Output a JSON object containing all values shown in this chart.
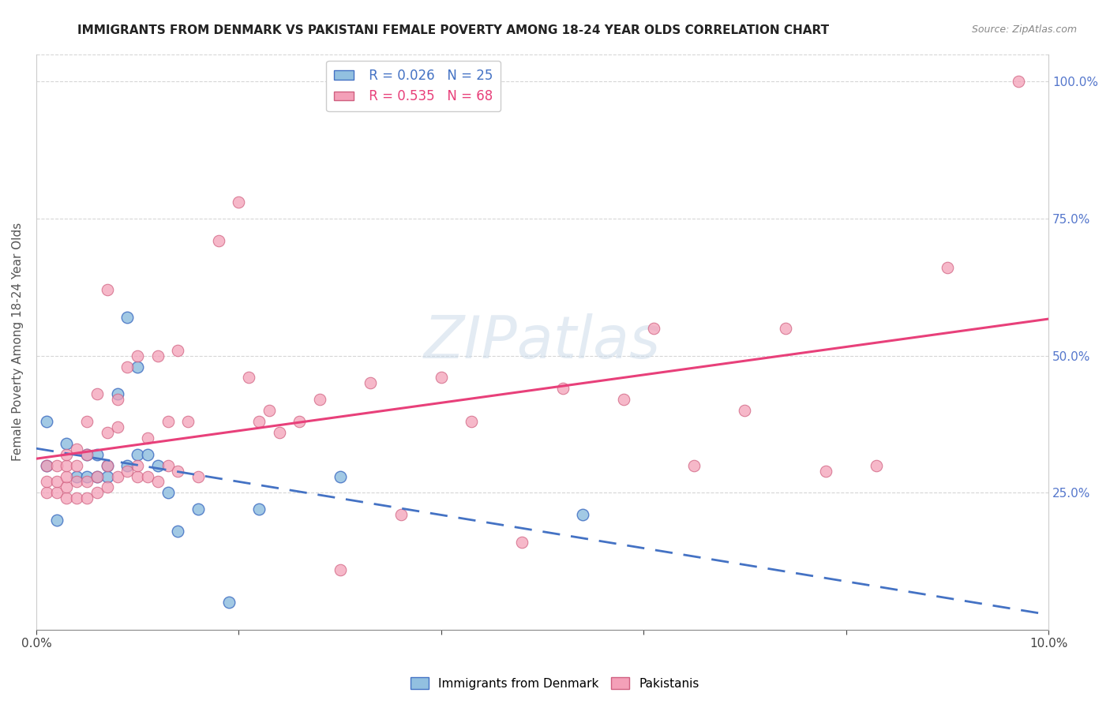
{
  "title": "IMMIGRANTS FROM DENMARK VS PAKISTANI FEMALE POVERTY AMONG 18-24 YEAR OLDS CORRELATION CHART",
  "source": "Source: ZipAtlas.com",
  "ylabel": "Female Poverty Among 18-24 Year Olds",
  "xlim": [
    0.0,
    0.1
  ],
  "ylim": [
    0.0,
    1.05
  ],
  "yticks": [
    0.0,
    0.25,
    0.5,
    0.75,
    1.0
  ],
  "yticklabels": [
    "",
    "25.0%",
    "50.0%",
    "75.0%",
    "100.0%"
  ],
  "legend1_r": "0.026",
  "legend1_n": "25",
  "legend2_r": "0.535",
  "legend2_n": "68",
  "color_blue": "#92c0e0",
  "color_pink": "#f4a0b8",
  "line_blue": "#4472c4",
  "line_pink": "#e8407a",
  "watermark": "ZIPatlas",
  "denmark_x": [
    0.001,
    0.001,
    0.002,
    0.003,
    0.004,
    0.005,
    0.005,
    0.006,
    0.006,
    0.007,
    0.007,
    0.008,
    0.009,
    0.009,
    0.01,
    0.01,
    0.011,
    0.012,
    0.013,
    0.014,
    0.016,
    0.019,
    0.022,
    0.03,
    0.054
  ],
  "denmark_y": [
    0.3,
    0.38,
    0.2,
    0.34,
    0.28,
    0.28,
    0.32,
    0.28,
    0.32,
    0.3,
    0.28,
    0.43,
    0.3,
    0.57,
    0.32,
    0.48,
    0.32,
    0.3,
    0.25,
    0.18,
    0.22,
    0.05,
    0.22,
    0.28,
    0.21
  ],
  "pakistan_x": [
    0.001,
    0.001,
    0.001,
    0.002,
    0.002,
    0.002,
    0.003,
    0.003,
    0.003,
    0.003,
    0.003,
    0.004,
    0.004,
    0.004,
    0.004,
    0.005,
    0.005,
    0.005,
    0.005,
    0.006,
    0.006,
    0.006,
    0.007,
    0.007,
    0.007,
    0.007,
    0.008,
    0.008,
    0.008,
    0.009,
    0.009,
    0.01,
    0.01,
    0.01,
    0.011,
    0.011,
    0.012,
    0.012,
    0.013,
    0.013,
    0.014,
    0.014,
    0.015,
    0.016,
    0.018,
    0.02,
    0.021,
    0.022,
    0.023,
    0.024,
    0.026,
    0.028,
    0.03,
    0.033,
    0.036,
    0.04,
    0.043,
    0.048,
    0.052,
    0.058,
    0.061,
    0.065,
    0.07,
    0.074,
    0.078,
    0.083,
    0.09,
    0.097
  ],
  "pakistan_y": [
    0.25,
    0.27,
    0.3,
    0.25,
    0.27,
    0.3,
    0.24,
    0.26,
    0.28,
    0.3,
    0.32,
    0.24,
    0.27,
    0.3,
    0.33,
    0.24,
    0.27,
    0.32,
    0.38,
    0.25,
    0.28,
    0.43,
    0.26,
    0.3,
    0.36,
    0.62,
    0.28,
    0.37,
    0.42,
    0.29,
    0.48,
    0.28,
    0.3,
    0.5,
    0.28,
    0.35,
    0.27,
    0.5,
    0.3,
    0.38,
    0.29,
    0.51,
    0.38,
    0.28,
    0.71,
    0.78,
    0.46,
    0.38,
    0.4,
    0.36,
    0.38,
    0.42,
    0.11,
    0.45,
    0.21,
    0.46,
    0.38,
    0.16,
    0.44,
    0.42,
    0.55,
    0.3,
    0.4,
    0.55,
    0.29,
    0.3,
    0.66,
    1.0
  ]
}
